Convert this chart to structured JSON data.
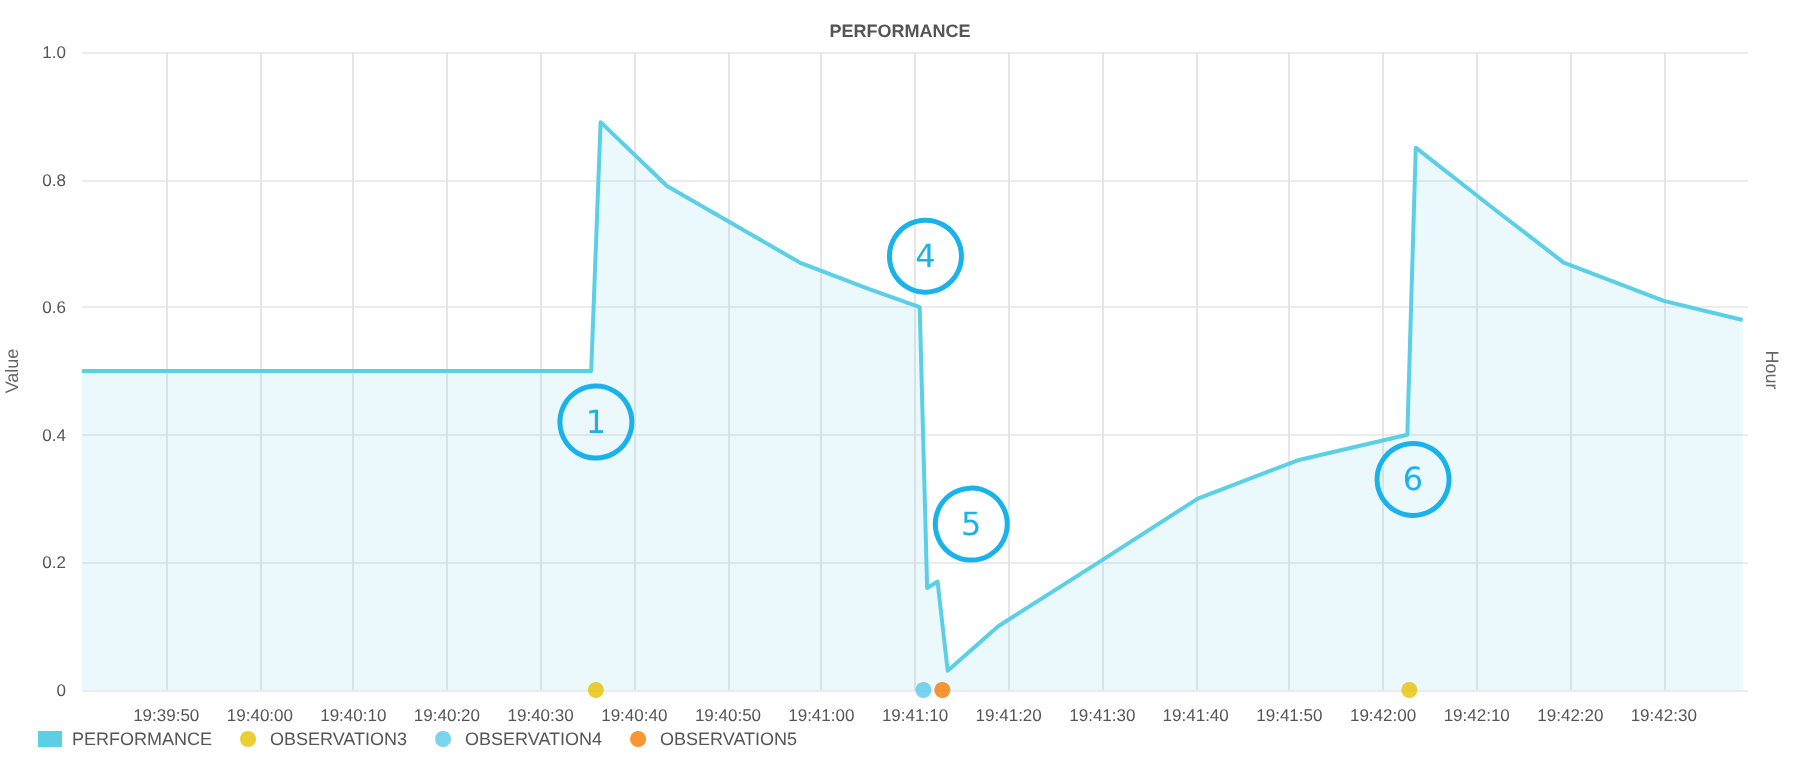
{
  "chart_data": {
    "type": "area",
    "title": "PERFORMANCE",
    "ylabel": "Value",
    "xlim": [
      19.66139,
      19.71083
    ],
    "xticks": [
      {
        "value": 19.66389,
        "label": "19:39:50"
      },
      {
        "value": 19.66667,
        "label": "19:40:00"
      },
      {
        "value": 19.66944,
        "label": "19:40:10"
      },
      {
        "value": 19.67222,
        "label": "19:40:20"
      },
      {
        "value": 19.675,
        "label": "19:40:30"
      },
      {
        "value": 19.67778,
        "label": "19:40:40"
      },
      {
        "value": 19.68056,
        "label": "19:40:50"
      },
      {
        "value": 19.68333,
        "label": "19:41:00"
      },
      {
        "value": 19.68611,
        "label": "19:41:10"
      },
      {
        "value": 19.68889,
        "label": "19:41:20"
      },
      {
        "value": 19.69167,
        "label": "19:41:30"
      },
      {
        "value": 19.69444,
        "label": "19:41:40"
      },
      {
        "value": 19.69722,
        "label": "19:41:50"
      },
      {
        "value": 19.7,
        "label": "19:42:00"
      },
      {
        "value": 19.70278,
        "label": "19:42:10"
      },
      {
        "value": 19.70556,
        "label": "19:42:20"
      },
      {
        "value": 19.70833,
        "label": "19:42:30"
      }
    ],
    "ylim": [
      0,
      1
    ],
    "yticks": [
      0,
      0.2,
      0.4,
      0.6,
      0.8,
      {
        "value": 1,
        "label": "1.0"
      }
    ],
    "grid": true,
    "legend": "bottom left",
    "series": [
      {
        "name": "PERFORMANCE",
        "color": "#5bcfe6",
        "x": [
          19.66139,
          19.6765,
          19.67678,
          19.67875,
          19.68072,
          19.68269,
          19.68467,
          19.68625,
          19.68647,
          19.68678,
          19.68708,
          19.68858,
          19.69156,
          19.6945,
          19.69747,
          19.70072,
          19.70097,
          19.70339,
          19.70536,
          19.70833,
          19.71067
        ],
        "values": [
          0.5,
          0.5,
          0.89,
          0.79,
          0.73,
          0.67,
          0.63,
          0.6,
          0.16,
          0.17,
          0.03,
          0.1,
          0.2,
          0.3,
          0.36,
          0.4,
          0.85,
          0.75,
          0.67,
          0.61,
          0.58
        ]
      },
      {
        "name": "OBSERVATION3",
        "type": "scatter",
        "color": "#e6c200",
        "x": [
          19.67664,
          19.70078
        ],
        "values": [
          0,
          0
        ]
      },
      {
        "name": "OBSERVATION4",
        "type": "scatter",
        "color": "#5bc8e8",
        "x": [
          19.68636
        ],
        "values": [
          0
        ]
      },
      {
        "name": "OBSERVATION5",
        "type": "scatter",
        "color": "#f57c00",
        "x": [
          19.68692
        ],
        "values": [
          0
        ]
      }
    ],
    "annotations": [
      "Hour",
      {
        "text": "1",
        "x": 19.67664,
        "y": 0.42
      },
      {
        "text": "4",
        "x": 19.68642,
        "y": 0.68
      },
      {
        "text": "5",
        "x": 19.68778,
        "y": 0.26
      },
      {
        "text": "6",
        "x": 19.70089,
        "y": 0.33
      }
    ]
  }
}
